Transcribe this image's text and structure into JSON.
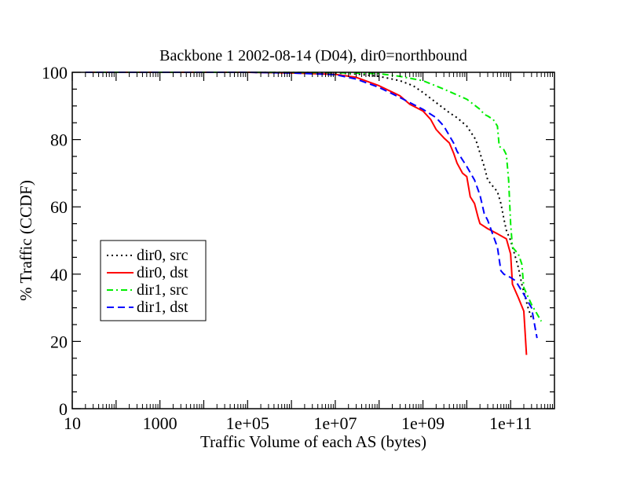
{
  "chart_data": {
    "type": "line",
    "title": "Backbone 1 2002-08-14 (D04), dir0=northbound",
    "xlabel": "Traffic Volume of each AS (bytes)",
    "ylabel": "% Traffic (CCDF)",
    "x_scale": "log",
    "xlim": [
      10,
      1000000000000
    ],
    "ylim": [
      0,
      100
    ],
    "x_ticks": [
      {
        "value": 10,
        "label": "10"
      },
      {
        "value": 1000,
        "label": "1000"
      },
      {
        "value": 100000,
        "label": "1e+05"
      },
      {
        "value": 10000000,
        "label": "1e+07"
      },
      {
        "value": 1000000000,
        "label": "1e+09"
      },
      {
        "value": 100000000000,
        "label": "1e+11"
      }
    ],
    "y_ticks": [
      {
        "value": 0,
        "label": "0"
      },
      {
        "value": 20,
        "label": "20"
      },
      {
        "value": 40,
        "label": "40"
      },
      {
        "value": 60,
        "label": "60"
      },
      {
        "value": 80,
        "label": "80"
      },
      {
        "value": 100,
        "label": "100"
      }
    ],
    "grid": false,
    "legend_position": "left-middle",
    "series": [
      {
        "name": "dir0, src",
        "color": "#000000",
        "dash": "dotted",
        "points": [
          [
            20,
            100
          ],
          [
            1000,
            100
          ],
          [
            100000,
            100
          ],
          [
            1000000,
            99.9
          ],
          [
            10000000,
            99.8
          ],
          [
            30000000,
            99.5
          ],
          [
            100000000,
            98.8
          ],
          [
            300000000,
            97.5
          ],
          [
            600000000,
            96
          ],
          [
            1000000000,
            94
          ],
          [
            2000000000,
            91
          ],
          [
            4000000000,
            88
          ],
          [
            6000000000,
            86.5
          ],
          [
            10000000000,
            84
          ],
          [
            16000000000,
            80
          ],
          [
            20000000000,
            76
          ],
          [
            25000000000,
            72
          ],
          [
            30000000000,
            68
          ],
          [
            40000000000,
            66
          ],
          [
            50000000000,
            64.5
          ],
          [
            60000000000,
            61
          ],
          [
            70000000000,
            56.5
          ],
          [
            80000000000,
            53
          ],
          [
            100000000000,
            50
          ],
          [
            150000000000,
            42
          ],
          [
            180000000000,
            37
          ],
          [
            250000000000,
            30
          ],
          [
            300000000000,
            27
          ]
        ]
      },
      {
        "name": "dir0, dst",
        "color": "#ff0000",
        "dash": "solid",
        "points": [
          [
            20,
            100
          ],
          [
            1000,
            100
          ],
          [
            100000,
            100
          ],
          [
            1000000,
            99.8
          ],
          [
            10000000,
            99.4
          ],
          [
            30000000,
            98.5
          ],
          [
            100000000,
            96
          ],
          [
            300000000,
            93
          ],
          [
            500000000,
            90.5
          ],
          [
            1000000000,
            88.5
          ],
          [
            1500000000,
            86
          ],
          [
            2000000000,
            83
          ],
          [
            3000000000,
            80.5
          ],
          [
            4000000000,
            79
          ],
          [
            5000000000,
            76
          ],
          [
            6000000000,
            73
          ],
          [
            8000000000,
            70
          ],
          [
            10000000000,
            69
          ],
          [
            12000000000,
            63
          ],
          [
            15000000000,
            61
          ],
          [
            18000000000,
            57
          ],
          [
            20000000000,
            55
          ],
          [
            30000000000,
            53.5
          ],
          [
            50000000000,
            52
          ],
          [
            80000000000,
            50.5
          ],
          [
            100000000000,
            46
          ],
          [
            110000000000,
            37
          ],
          [
            150000000000,
            33
          ],
          [
            200000000000,
            29
          ],
          [
            230000000000,
            16
          ]
        ]
      },
      {
        "name": "dir1, src",
        "color": "#00ee00",
        "dash": "dashdot",
        "points": [
          [
            20,
            100
          ],
          [
            1000,
            100
          ],
          [
            100000,
            100
          ],
          [
            1000000,
            99.95
          ],
          [
            10000000,
            99.9
          ],
          [
            100000000,
            99.6
          ],
          [
            300000000,
            98.8
          ],
          [
            1000000000,
            97.5
          ],
          [
            3000000000,
            95
          ],
          [
            10000000000,
            92
          ],
          [
            20000000000,
            89
          ],
          [
            25000000000,
            87.5
          ],
          [
            30000000000,
            87
          ],
          [
            40000000000,
            86
          ],
          [
            50000000000,
            84
          ],
          [
            55000000000,
            78
          ],
          [
            70000000000,
            77
          ],
          [
            80000000000,
            75.5
          ],
          [
            90000000000,
            68
          ],
          [
            100000000000,
            55
          ],
          [
            110000000000,
            48
          ],
          [
            150000000000,
            46
          ],
          [
            180000000000,
            43
          ],
          [
            200000000000,
            36
          ],
          [
            300000000000,
            31
          ],
          [
            500000000000,
            26
          ]
        ]
      },
      {
        "name": "dir1, dst",
        "color": "#0000ff",
        "dash": "dashed",
        "points": [
          [
            20,
            100
          ],
          [
            1000,
            100
          ],
          [
            100000,
            100
          ],
          [
            1000000,
            99.8
          ],
          [
            10000000,
            99.3
          ],
          [
            30000000,
            98
          ],
          [
            100000000,
            95.5
          ],
          [
            300000000,
            92.5
          ],
          [
            1000000000,
            89
          ],
          [
            2000000000,
            86.5
          ],
          [
            3000000000,
            84
          ],
          [
            5000000000,
            79
          ],
          [
            6000000000,
            76.5
          ],
          [
            10000000000,
            72
          ],
          [
            15000000000,
            68
          ],
          [
            20000000000,
            63.5
          ],
          [
            25000000000,
            58
          ],
          [
            30000000000,
            56
          ],
          [
            50000000000,
            48
          ],
          [
            60000000000,
            41
          ],
          [
            70000000000,
            40
          ],
          [
            100000000000,
            39
          ],
          [
            130000000000,
            38
          ],
          [
            200000000000,
            34
          ],
          [
            300000000000,
            30
          ],
          [
            400000000000,
            21
          ]
        ]
      }
    ]
  }
}
